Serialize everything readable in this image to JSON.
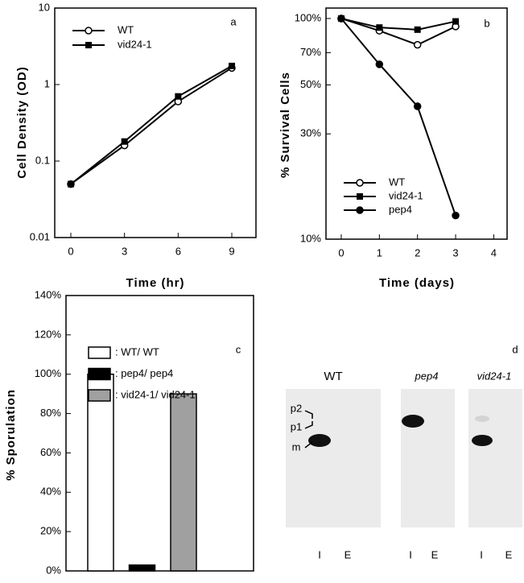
{
  "chart_data": [
    {
      "type": "line",
      "label": "a",
      "xlabel": "Time (hr)",
      "ylabel": "Cell Density (OD)",
      "log_y": true,
      "legend": "upper left",
      "x": [
        0,
        3,
        6,
        9
      ],
      "series": [
        {
          "name": "WT",
          "color": "#000000",
          "marker": "circle-open",
          "values": [
            0.05,
            0.16,
            0.6,
            1.65
          ]
        },
        {
          "name": "vid24-1",
          "color": "#000000",
          "marker": "square",
          "values": [
            0.05,
            0.18,
            0.7,
            1.75
          ]
        }
      ],
      "xlim": [
        -0.9,
        10.35
      ],
      "xticks": [
        0,
        3,
        6,
        9
      ],
      "ylim": [
        0.01,
        10
      ],
      "yticks": [
        0.01,
        0.1,
        1,
        10
      ]
    },
    {
      "type": "line",
      "label": "b",
      "xlabel": "Time (days)",
      "ylabel": "% Survival Cells",
      "log_y": true,
      "legend": "lower left",
      "x": [
        0,
        1,
        2,
        3
      ],
      "series": [
        {
          "name": "WT",
          "color": "#000000",
          "marker": "circle-open",
          "values": [
            100,
            88,
            76,
            92
          ]
        },
        {
          "name": "vid24-1",
          "color": "#000000",
          "marker": "square",
          "values": [
            100,
            91,
            89,
            97
          ]
        },
        {
          "name": "pep4",
          "color": "#000000",
          "marker": "circle",
          "values": [
            100,
            62,
            40,
            12.8
          ]
        }
      ],
      "xlim": [
        -0.4,
        4.35
      ],
      "xticks": [
        0,
        1,
        2,
        3,
        4
      ],
      "ylim": [
        10,
        111.5
      ],
      "yticks": [
        {
          "value": 100,
          "label": "100%"
        },
        {
          "value": 70,
          "label": "70%"
        },
        {
          "value": 50,
          "label": "50%"
        },
        {
          "value": 30,
          "label": "30%"
        },
        {
          "value": 10,
          "label": "10%"
        }
      ]
    },
    {
      "type": "bar",
      "label": "c",
      "ylabel": "% Sporulation",
      "categories": [
        null,
        null,
        null
      ],
      "values": [
        100,
        3,
        90
      ],
      "colors": [
        "#ffffff",
        "#000000",
        "#a0a0a0"
      ],
      "legend_labels": [
        ": WT/ WT",
        ": pep4/ pep4",
        ": vid24-1/ vid24-1"
      ],
      "ylim": [
        0,
        140
      ],
      "yticks": [
        {
          "value": 0,
          "label": "0%"
        },
        {
          "value": 20,
          "label": "20%"
        },
        {
          "value": 40,
          "label": "40%"
        },
        {
          "value": 60,
          "label": "60%"
        },
        {
          "value": 80,
          "label": "80%"
        },
        {
          "value": 100,
          "label": "100%"
        },
        {
          "value": 120,
          "label": "120%"
        },
        {
          "value": 140,
          "label": "140%"
        }
      ]
    }
  ],
  "gel": {
    "label": "d",
    "band_labels": [
      "p2",
      "p1",
      "m"
    ],
    "lanes": [
      {
        "title": "WT",
        "labels": [
          "I",
          "E"
        ]
      },
      {
        "title": "pep4",
        "labels": [
          "I",
          "E"
        ]
      },
      {
        "title": "vid24-1",
        "labels": [
          "I",
          "E"
        ]
      }
    ]
  }
}
